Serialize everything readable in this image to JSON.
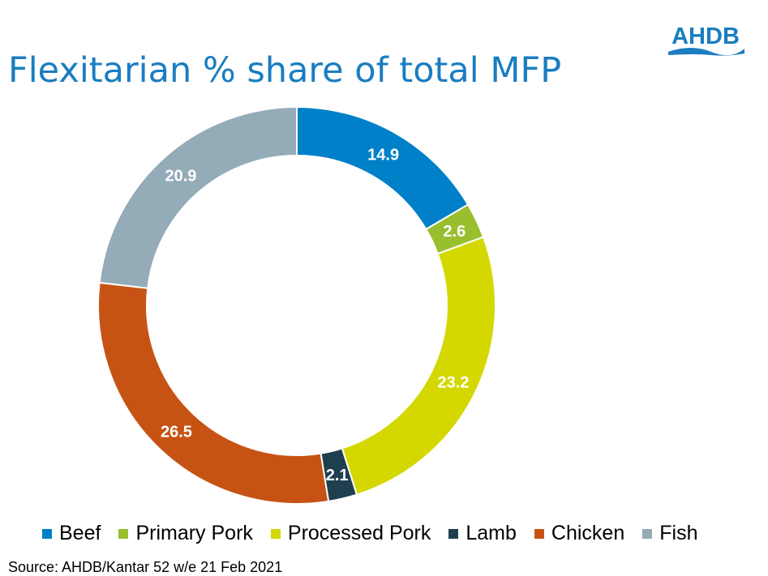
{
  "title": "Flexitarian % share of total MFP",
  "logo_text": "AHDB",
  "source": "Source: AHDB/Kantar 52 w/e 21 Feb 2021",
  "chart_data": {
    "type": "pie",
    "donut": true,
    "title": "Flexitarian % share of total MFP",
    "categories": [
      "Beef",
      "Primary Pork",
      "Processed Pork",
      "Lamb",
      "Chicken",
      "Fish"
    ],
    "values": [
      14.9,
      2.6,
      23.2,
      2.1,
      26.5,
      20.9
    ],
    "colors": [
      "#0080c8",
      "#99be2e",
      "#d4d800",
      "#1f3f4f",
      "#c65314",
      "#94abb8"
    ],
    "legend_position": "bottom"
  }
}
